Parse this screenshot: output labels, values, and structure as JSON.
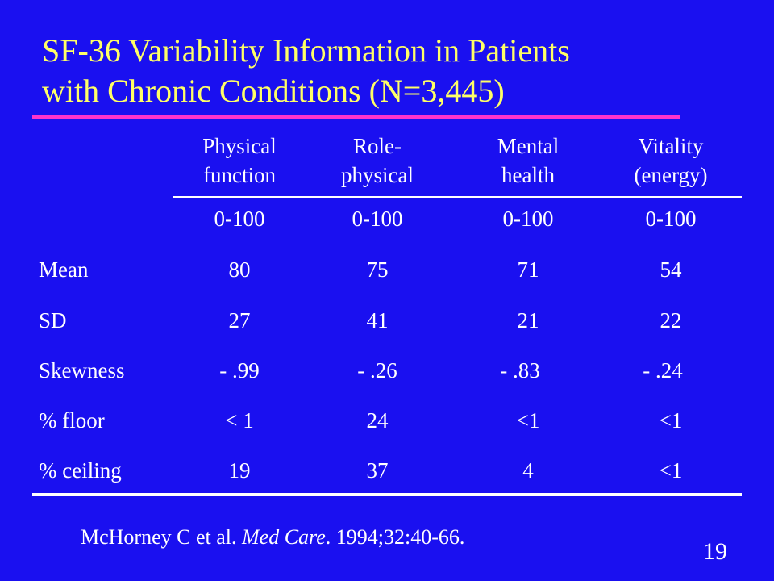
{
  "slide": {
    "title_line1": "SF-36 Variability Information in Patients",
    "title_line2": "with Chronic Conditions (N=3,445)",
    "colors": {
      "background": "#1a10f0",
      "title": "#ffff66",
      "accent_rule": "#ff33cc",
      "text": "#ffffff"
    },
    "page_number": "19"
  },
  "table": {
    "columns": [
      {
        "line1": "Physical",
        "line2": "function"
      },
      {
        "line1": "Role-",
        "line2": "physical"
      },
      {
        "line1": "Mental",
        "line2": "health"
      },
      {
        "line1": "Vitality",
        "line2": "(energy)"
      }
    ],
    "rows": [
      {
        "label": "",
        "values": [
          "0-100",
          "0-100",
          "0-100",
          "0-100"
        ]
      },
      {
        "label": "Mean",
        "values": [
          "80",
          "75",
          "71",
          "54"
        ]
      },
      {
        "label": "SD",
        "values": [
          "27",
          "41",
          "21",
          "22"
        ]
      },
      {
        "label": "Skewness",
        "values": [
          "- .99",
          "- .26",
          "- .83",
          "- .24"
        ]
      },
      {
        "label": "% floor",
        "values": [
          "< 1",
          "24",
          "<1",
          "<1"
        ]
      },
      {
        "label": "% ceiling",
        "values": [
          "19",
          "37",
          "4",
          "<1"
        ]
      }
    ]
  },
  "citation": {
    "authors": "McHorney C et al. ",
    "journal": "Med Care",
    "details": ". 1994;32:40-66."
  }
}
